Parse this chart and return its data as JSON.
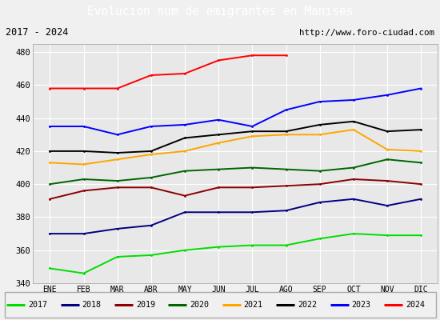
{
  "title": "Evolucion num de emigrantes en Manises",
  "subtitle_left": "2017 - 2024",
  "subtitle_right": "http://www.foro-ciudad.com",
  "title_bgcolor": "#4080c0",
  "title_fgcolor": "#ffffff",
  "x_labels": [
    "ENE",
    "FEB",
    "MAR",
    "ABR",
    "MAY",
    "JUN",
    "JUL",
    "AGO",
    "SEP",
    "OCT",
    "NOV",
    "DIC"
  ],
  "ylim": [
    340,
    485
  ],
  "yticks": [
    340,
    360,
    380,
    400,
    420,
    440,
    460,
    480
  ],
  "series": [
    {
      "year": "2017",
      "color": "#00dd00",
      "values": [
        349,
        346,
        356,
        357,
        360,
        362,
        363,
        363,
        367,
        370,
        369,
        369
      ]
    },
    {
      "year": "2018",
      "color": "#000080",
      "values": [
        370,
        370,
        373,
        375,
        383,
        383,
        383,
        384,
        389,
        391,
        387,
        391
      ]
    },
    {
      "year": "2019",
      "color": "#8b0000",
      "values": [
        391,
        396,
        398,
        398,
        393,
        398,
        398,
        399,
        400,
        403,
        402,
        400
      ]
    },
    {
      "year": "2020",
      "color": "#006400",
      "values": [
        400,
        403,
        402,
        404,
        408,
        409,
        410,
        409,
        408,
        410,
        415,
        413
      ]
    },
    {
      "year": "2021",
      "color": "#ffa500",
      "values": [
        413,
        412,
        415,
        418,
        420,
        425,
        429,
        430,
        430,
        433,
        421,
        420
      ]
    },
    {
      "year": "2022",
      "color": "#000000",
      "values": [
        420,
        420,
        419,
        420,
        428,
        430,
        432,
        432,
        436,
        438,
        432,
        433
      ]
    },
    {
      "year": "2023",
      "color": "#0000ff",
      "values": [
        435,
        435,
        430,
        435,
        436,
        439,
        435,
        445,
        450,
        451,
        454,
        458
      ]
    },
    {
      "year": "2024",
      "color": "#ff0000",
      "values": [
        458,
        458,
        458,
        466,
        467,
        475,
        478,
        478,
        null,
        null,
        null,
        null
      ]
    }
  ],
  "plot_bgcolor": "#e8e8e8",
  "grid_color": "#ffffff",
  "outer_bgcolor": "#f0f0f0",
  "font_family": "DejaVu Sans Mono"
}
